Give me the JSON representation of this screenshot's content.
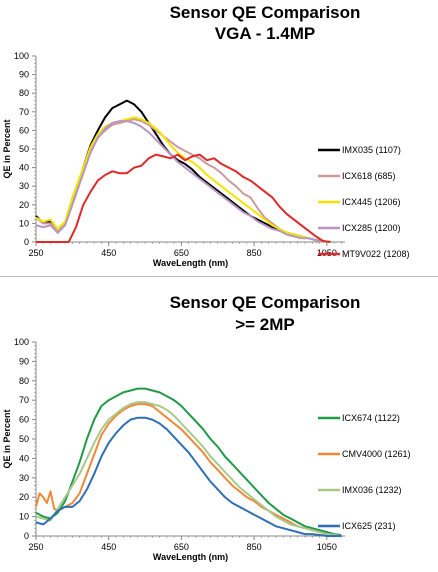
{
  "chart_data": [
    {
      "type": "line",
      "title": "Sensor QE Comparison",
      "subtitle": "VGA - 1.4MP",
      "xlabel": "WaveLength (nm)",
      "ylabel": "QE in Percent",
      "xlim": [
        250,
        1100
      ],
      "ylim": [
        0,
        100
      ],
      "xticks": [
        250,
        450,
        650,
        850,
        1050
      ],
      "yticks": [
        0,
        10,
        20,
        30,
        40,
        50,
        60,
        70,
        80,
        90,
        100
      ],
      "grid": false,
      "legend": "right",
      "series": [
        {
          "name": "IMX035 (1107)",
          "color": "#000000",
          "x": [
            250,
            270,
            290,
            310,
            330,
            350,
            380,
            400,
            420,
            440,
            460,
            480,
            500,
            520,
            540,
            560,
            580,
            600,
            620,
            640,
            660,
            680,
            700,
            720,
            740,
            760,
            780,
            800,
            820,
            840,
            860,
            880,
            900,
            920,
            940,
            960,
            980,
            1000,
            1020,
            1040,
            1060
          ],
          "y": [
            14,
            10,
            11,
            5,
            10,
            22,
            40,
            52,
            60,
            67,
            72,
            74,
            76,
            74,
            70,
            64,
            58,
            52,
            47,
            44,
            42,
            39,
            35,
            32,
            29,
            26,
            23,
            20,
            17,
            14,
            12,
            10,
            8,
            6,
            5,
            4,
            3,
            2,
            1,
            0.5,
            0
          ]
        },
        {
          "name": "ICX618 (685)",
          "color": "#c99a9f",
          "x": [
            250,
            270,
            290,
            310,
            330,
            350,
            380,
            400,
            420,
            440,
            460,
            480,
            500,
            520,
            540,
            560,
            580,
            600,
            620,
            640,
            660,
            680,
            700,
            720,
            740,
            760,
            780,
            800,
            820,
            840,
            860,
            880,
            900,
            920,
            940,
            960,
            980,
            1000,
            1020,
            1040,
            1060
          ],
          "y": [
            13,
            10,
            10,
            6,
            10,
            22,
            39,
            49,
            56,
            60,
            63,
            64,
            65,
            66,
            65,
            63,
            60,
            57,
            54,
            51,
            49,
            47,
            45,
            42,
            40,
            37,
            33,
            30,
            26,
            24,
            18,
            13,
            10,
            7,
            5,
            4,
            3,
            2,
            1,
            0.5,
            0
          ]
        },
        {
          "name": "ICX445 (1206)",
          "color": "#f5e400",
          "x": [
            250,
            270,
            290,
            310,
            330,
            350,
            380,
            400,
            420,
            440,
            460,
            480,
            500,
            520,
            540,
            560,
            580,
            600,
            620,
            640,
            660,
            680,
            700,
            720,
            740,
            760,
            780,
            800,
            820,
            840,
            860,
            880,
            900,
            920,
            940,
            960,
            980,
            1000,
            1020,
            1040,
            1060
          ],
          "y": [
            13,
            11,
            12,
            7,
            11,
            24,
            40,
            51,
            58,
            62,
            64,
            65,
            66,
            67,
            66,
            64,
            61,
            57,
            52,
            48,
            45,
            43,
            40,
            36,
            33,
            30,
            27,
            24,
            21,
            18,
            15,
            12,
            9,
            7,
            5,
            4,
            3,
            2,
            1,
            0.5,
            0
          ]
        },
        {
          "name": "ICX285 (1200)",
          "color": "#b896c4",
          "x": [
            250,
            270,
            290,
            310,
            330,
            350,
            380,
            400,
            420,
            440,
            460,
            480,
            500,
            520,
            540,
            560,
            580,
            600,
            620,
            640,
            660,
            680,
            700,
            720,
            740,
            760,
            780,
            800,
            820,
            840,
            860,
            880,
            900,
            920,
            940,
            960,
            980,
            1000,
            1020,
            1040,
            1060
          ],
          "y": [
            9,
            8,
            9,
            5,
            9,
            20,
            37,
            48,
            56,
            61,
            64,
            65,
            65,
            64,
            62,
            59,
            55,
            51,
            47,
            43,
            40,
            37,
            34,
            31,
            28,
            25,
            22,
            19,
            16,
            14,
            11,
            9,
            7,
            6,
            4,
            3,
            2,
            2,
            1,
            0.5,
            0
          ]
        },
        {
          "name": "MT9V022 (1208)",
          "color": "#e0292a",
          "x": [
            250,
            310,
            340,
            360,
            380,
            400,
            420,
            440,
            460,
            480,
            500,
            520,
            540,
            560,
            580,
            600,
            620,
            640,
            660,
            680,
            700,
            720,
            740,
            760,
            780,
            800,
            820,
            840,
            860,
            880,
            900,
            920,
            940,
            960,
            980,
            1000,
            1020,
            1040,
            1060
          ],
          "y": [
            0,
            0,
            0,
            8,
            20,
            27,
            33,
            36,
            38,
            37,
            37,
            40,
            41,
            45,
            47,
            46,
            45,
            47,
            44,
            46,
            47,
            44,
            45,
            42,
            40,
            38,
            35,
            33,
            30,
            27,
            24,
            19,
            15,
            12,
            9,
            6,
            3,
            0.5,
            0
          ]
        }
      ]
    },
    {
      "type": "line",
      "title": "Sensor QE Comparison",
      "subtitle": ">= 2MP",
      "xlabel": "WaveLength (nm)",
      "ylabel": "QE in Percent",
      "xlim": [
        250,
        1100
      ],
      "ylim": [
        0,
        100
      ],
      "xticks": [
        250,
        450,
        650,
        850,
        1050
      ],
      "yticks": [
        0,
        10,
        20,
        30,
        40,
        50,
        60,
        70,
        80,
        90,
        100
      ],
      "grid": false,
      "legend": "right",
      "series": [
        {
          "name": "ICX674 (1122)",
          "color": "#1f9b48",
          "x": [
            250,
            270,
            290,
            310,
            330,
            350,
            370,
            390,
            410,
            430,
            450,
            470,
            490,
            510,
            530,
            550,
            570,
            590,
            610,
            630,
            650,
            670,
            690,
            710,
            730,
            750,
            770,
            790,
            810,
            830,
            850,
            870,
            890,
            910,
            930,
            950,
            970,
            990,
            1010,
            1030,
            1050,
            1070,
            1090
          ],
          "y": [
            12,
            10,
            9,
            12,
            18,
            28,
            38,
            50,
            60,
            67,
            70,
            72,
            74,
            75,
            76,
            76,
            75,
            74,
            72,
            70,
            67,
            63,
            59,
            55,
            50,
            46,
            41,
            37,
            33,
            29,
            25,
            21,
            17,
            14,
            11,
            9,
            7,
            5,
            4,
            3,
            2,
            1,
            0.5
          ]
        },
        {
          "name": "CMV4000 (1261)",
          "color": "#f0883a",
          "x": [
            250,
            260,
            270,
            280,
            290,
            300,
            310,
            330,
            350,
            370,
            390,
            410,
            430,
            450,
            470,
            490,
            510,
            530,
            550,
            570,
            590,
            610,
            630,
            650,
            670,
            690,
            710,
            730,
            750,
            770,
            790,
            810,
            830,
            850,
            870,
            890,
            910,
            930,
            950,
            970,
            990,
            1010,
            1030,
            1050,
            1070,
            1090
          ],
          "y": [
            15,
            22,
            20,
            17,
            23,
            14,
            13,
            15,
            17,
            22,
            32,
            42,
            52,
            58,
            62,
            65,
            67,
            68,
            68,
            67,
            64,
            61,
            58,
            55,
            51,
            47,
            43,
            38,
            34,
            30,
            26,
            23,
            20,
            18,
            15,
            13,
            11,
            9,
            7,
            5,
            4,
            3,
            2,
            1,
            0.5,
            0
          ]
        },
        {
          "name": "IMX036 (1232)",
          "color": "#a9c98a",
          "x": [
            250,
            270,
            290,
            310,
            330,
            350,
            370,
            390,
            410,
            430,
            450,
            470,
            490,
            510,
            530,
            550,
            570,
            590,
            610,
            630,
            650,
            670,
            690,
            710,
            730,
            750,
            770,
            790,
            810,
            830,
            850,
            870,
            890,
            910,
            930,
            950,
            970,
            990,
            1010,
            1030,
            1050,
            1070,
            1090
          ],
          "y": [
            10,
            9,
            8,
            14,
            20,
            26,
            32,
            40,
            48,
            55,
            60,
            63,
            66,
            68,
            69,
            69,
            68,
            67,
            65,
            62,
            58,
            54,
            50,
            46,
            41,
            37,
            33,
            29,
            25,
            22,
            19,
            16,
            13,
            10,
            8,
            6,
            5,
            4,
            3,
            2,
            1,
            0.5,
            0
          ]
        },
        {
          "name": "ICX625 (231)",
          "color": "#2f6fb6",
          "x": [
            250,
            270,
            290,
            310,
            330,
            350,
            370,
            390,
            410,
            430,
            450,
            470,
            490,
            510,
            530,
            550,
            570,
            590,
            610,
            630,
            650,
            670,
            690,
            710,
            730,
            750,
            770,
            790,
            810,
            830,
            850,
            870,
            890,
            910,
            930,
            950,
            970,
            990,
            1010,
            1030,
            1050,
            1070,
            1090
          ],
          "y": [
            7,
            6,
            9,
            13,
            15,
            15,
            18,
            24,
            32,
            41,
            48,
            53,
            57,
            60,
            61,
            61,
            60,
            58,
            55,
            51,
            47,
            43,
            38,
            33,
            28,
            24,
            20,
            17,
            15,
            13,
            11,
            9,
            7,
            5,
            4,
            3,
            2,
            1,
            1,
            0.5,
            0,
            0,
            0
          ]
        }
      ]
    }
  ]
}
